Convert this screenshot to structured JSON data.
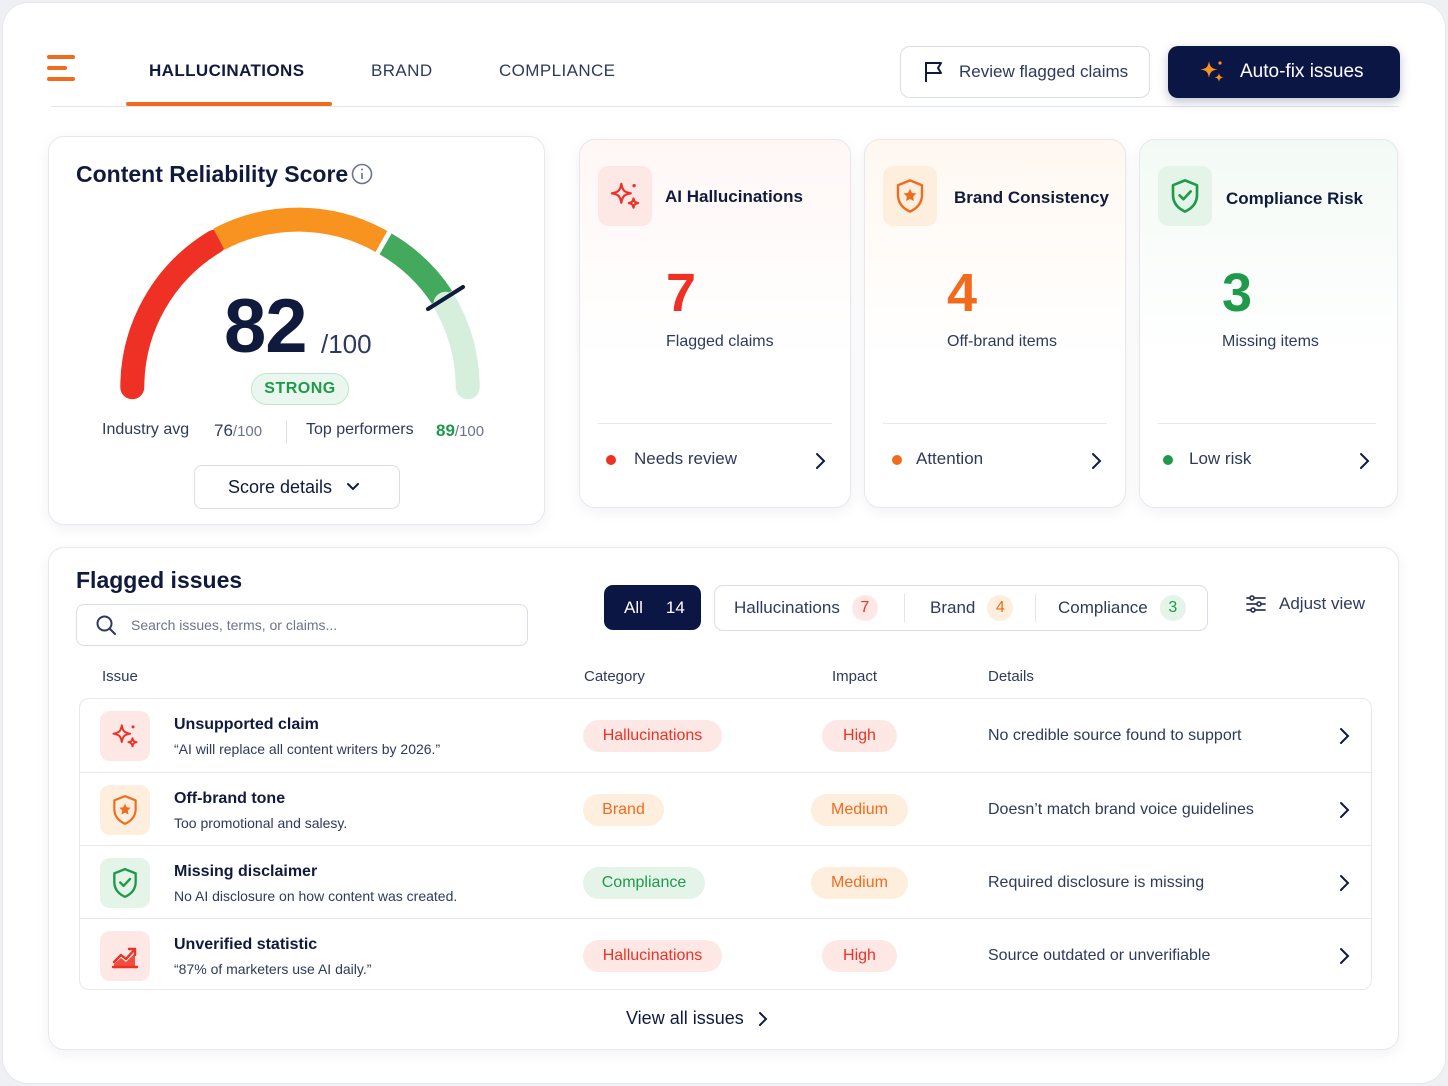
{
  "nav": {
    "tabs": [
      "HALLUCINATIONS",
      "BRAND",
      "COMPLIANCE"
    ],
    "active_tab": "HALLUCINATIONS",
    "review_label": "Review flagged claims",
    "autofix_label": "Auto-fix issues"
  },
  "score": {
    "title": "Content Reliability Score",
    "value": "82",
    "denominator": "/100",
    "level": 0.82,
    "badge": "STRONG",
    "industry_label": "Industry avg",
    "industry_value": "76",
    "industry_denom": "/100",
    "top_label": "Top performers",
    "top_value": "89",
    "top_denom": "/100",
    "details_button": "Score details"
  },
  "metrics": [
    {
      "title": "AI Hallucinations",
      "value": "7",
      "label": "Flagged claims",
      "status": "Needs review",
      "color": "#ee3124",
      "icon": "sparkle-icon"
    },
    {
      "title": "Brand Consistency",
      "value": "4",
      "label": "Off-brand items",
      "status": "Attention",
      "color": "#f26b1d",
      "icon": "shield-star-icon"
    },
    {
      "title": "Compliance Risk",
      "value": "3",
      "label": "Missing items",
      "status": "Low risk",
      "color": "#1f9a4a",
      "icon": "shield-check-icon"
    }
  ],
  "issues": {
    "title": "Flagged issues",
    "search_placeholder": "Search issues, terms, or claims...",
    "filters": {
      "all_label": "All",
      "all_count": "14",
      "hallucinations_label": "Hallucinations",
      "hallucinations_count": "7",
      "brand_label": "Brand",
      "brand_count": "4",
      "compliance_label": "Compliance",
      "compliance_count": "3"
    },
    "adjust_label": "Adjust view",
    "columns": [
      "Issue",
      "Category",
      "Impact",
      "Details"
    ],
    "rows": [
      {
        "title": "Unsupported claim",
        "subtitle": "“AI will replace all content writers by 2026.”",
        "category": "Hallucinations",
        "impact": "High",
        "details": "No credible source found to support",
        "icon": "sparkle-icon"
      },
      {
        "title": "Off-brand tone",
        "subtitle": "Too promotional and salesy.",
        "category": "Brand",
        "impact": "Medium",
        "details": "Doesn’t match brand voice guidelines",
        "icon": "shield-star-icon"
      },
      {
        "title": "Missing disclaimer",
        "subtitle": "No AI disclosure on how content was created.",
        "category": "Compliance",
        "impact": "Medium",
        "details": "Required disclosure is missing",
        "icon": "shield-check-icon"
      },
      {
        "title": "Unverified statistic",
        "subtitle": "“87% of marketers use AI daily.”",
        "category": "Hallucinations",
        "impact": "High",
        "details": "Source outdated or unverifiable",
        "icon": "trend-chart-icon"
      }
    ],
    "view_all": "View all issues"
  }
}
